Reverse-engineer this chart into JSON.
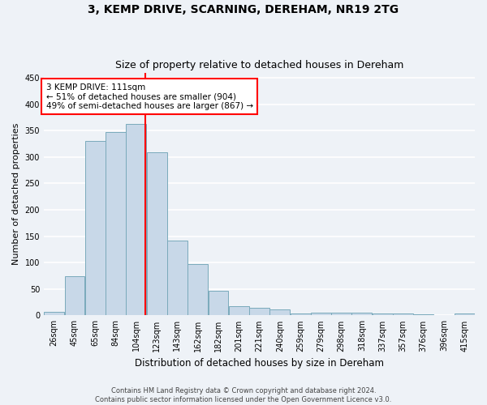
{
  "title": "3, KEMP DRIVE, SCARNING, DEREHAM, NR19 2TG",
  "subtitle": "Size of property relative to detached houses in Dereham",
  "xlabel": "Distribution of detached houses by size in Dereham",
  "ylabel": "Number of detached properties",
  "categories": [
    "26sqm",
    "45sqm",
    "65sqm",
    "84sqm",
    "104sqm",
    "123sqm",
    "143sqm",
    "162sqm",
    "182sqm",
    "201sqm",
    "221sqm",
    "240sqm",
    "259sqm",
    "279sqm",
    "298sqm",
    "318sqm",
    "337sqm",
    "357sqm",
    "376sqm",
    "396sqm",
    "415sqm"
  ],
  "bin_edges": [
    17,
    36,
    55,
    74,
    93,
    112,
    131,
    150,
    169,
    188,
    207,
    226,
    245,
    264,
    283,
    302,
    321,
    340,
    359,
    378,
    397,
    416
  ],
  "bar_heights": [
    7,
    75,
    330,
    347,
    363,
    309,
    142,
    97,
    46,
    17,
    14,
    11,
    4,
    6,
    5,
    5,
    4,
    3,
    2,
    1,
    3
  ],
  "bar_color": "#c8d8e8",
  "bar_edge_color": "#7aaabb",
  "vline_x": 111,
  "vline_color": "red",
  "annotation_text": "3 KEMP DRIVE: 111sqm\n← 51% of detached houses are smaller (904)\n49% of semi-detached houses are larger (867) →",
  "annotation_box_color": "white",
  "annotation_box_edge": "red",
  "ylim": [
    0,
    460
  ],
  "yticks": [
    0,
    50,
    100,
    150,
    200,
    250,
    300,
    350,
    400,
    450
  ],
  "footer1": "Contains HM Land Registry data © Crown copyright and database right 2024.",
  "footer2": "Contains public sector information licensed under the Open Government Licence v3.0.",
  "bg_color": "#eef2f7",
  "grid_color": "white",
  "title_fontsize": 10,
  "subtitle_fontsize": 9,
  "tick_fontsize": 7,
  "ylabel_fontsize": 8,
  "xlabel_fontsize": 8.5
}
